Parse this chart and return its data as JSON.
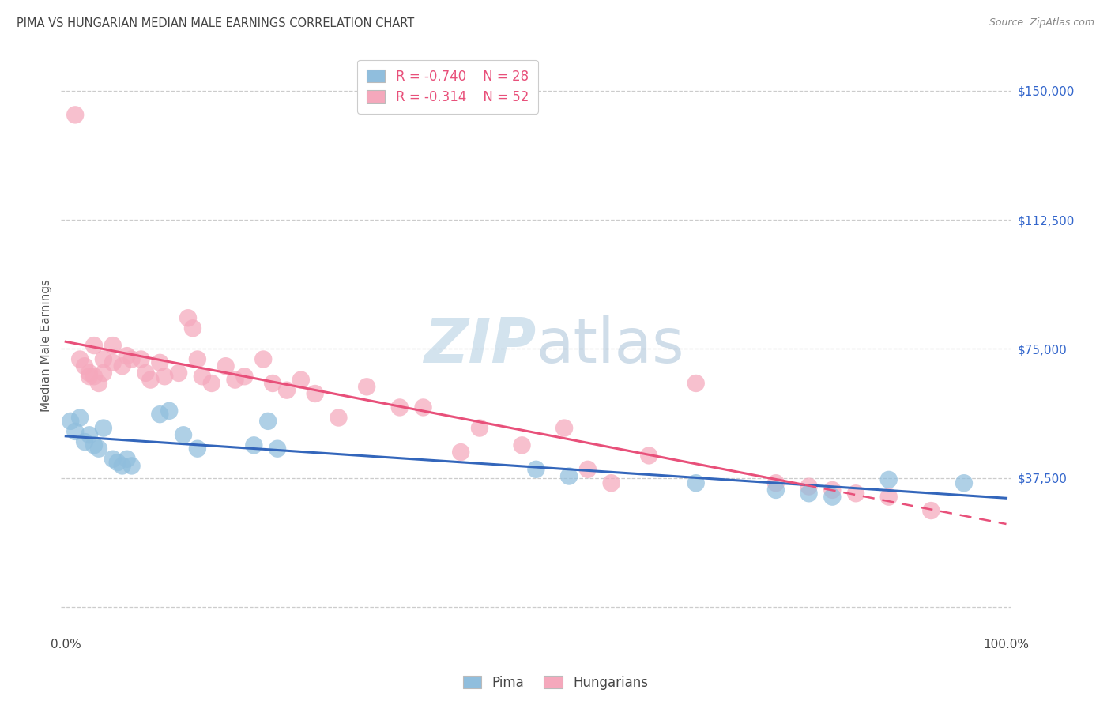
{
  "title": "PIMA VS HUNGARIAN MEDIAN MALE EARNINGS CORRELATION CHART",
  "source": "Source: ZipAtlas.com",
  "ylabel": "Median Male Earnings",
  "yticks": [
    0,
    37500,
    75000,
    112500,
    150000
  ],
  "ymin": -8000,
  "ymax": 160000,
  "xmin": -0.005,
  "xmax": 1.005,
  "blue_color": "#90bedd",
  "pink_color": "#f5a8bc",
  "blue_line_color": "#3366bb",
  "pink_line_color": "#e8507a",
  "grid_color": "#cccccc",
  "right_axis_color": "#3366cc",
  "pima_x": [
    0.005,
    0.01,
    0.015,
    0.02,
    0.025,
    0.03,
    0.035,
    0.04,
    0.05,
    0.055,
    0.06,
    0.065,
    0.07,
    0.1,
    0.11,
    0.125,
    0.14,
    0.2,
    0.215,
    0.225,
    0.5,
    0.535,
    0.67,
    0.755,
    0.79,
    0.815,
    0.875,
    0.955
  ],
  "pima_y": [
    54000,
    51000,
    55000,
    48000,
    50000,
    47000,
    46000,
    52000,
    43000,
    42000,
    41000,
    43000,
    41000,
    56000,
    57000,
    50000,
    46000,
    47000,
    54000,
    46000,
    40000,
    38000,
    36000,
    34000,
    33000,
    32000,
    37000,
    36000
  ],
  "hungarian_x": [
    0.01,
    0.015,
    0.02,
    0.025,
    0.025,
    0.03,
    0.03,
    0.035,
    0.04,
    0.04,
    0.05,
    0.05,
    0.06,
    0.065,
    0.07,
    0.08,
    0.085,
    0.09,
    0.1,
    0.105,
    0.12,
    0.13,
    0.135,
    0.14,
    0.145,
    0.155,
    0.17,
    0.18,
    0.19,
    0.21,
    0.22,
    0.235,
    0.25,
    0.265,
    0.29,
    0.32,
    0.355,
    0.38,
    0.42,
    0.44,
    0.485,
    0.53,
    0.555,
    0.58,
    0.62,
    0.67,
    0.755,
    0.79,
    0.815,
    0.84,
    0.875,
    0.92
  ],
  "hungarian_y": [
    143000,
    72000,
    70000,
    67000,
    68000,
    76000,
    67000,
    65000,
    72000,
    68000,
    76000,
    71000,
    70000,
    73000,
    72000,
    72000,
    68000,
    66000,
    71000,
    67000,
    68000,
    84000,
    81000,
    72000,
    67000,
    65000,
    70000,
    66000,
    67000,
    72000,
    65000,
    63000,
    66000,
    62000,
    55000,
    64000,
    58000,
    58000,
    45000,
    52000,
    47000,
    52000,
    40000,
    36000,
    44000,
    65000,
    36000,
    35000,
    34000,
    33000,
    32000,
    28000
  ],
  "legend_blue_r": "-0.740",
  "legend_blue_n": "28",
  "legend_pink_r": "-0.314",
  "legend_pink_n": "52"
}
